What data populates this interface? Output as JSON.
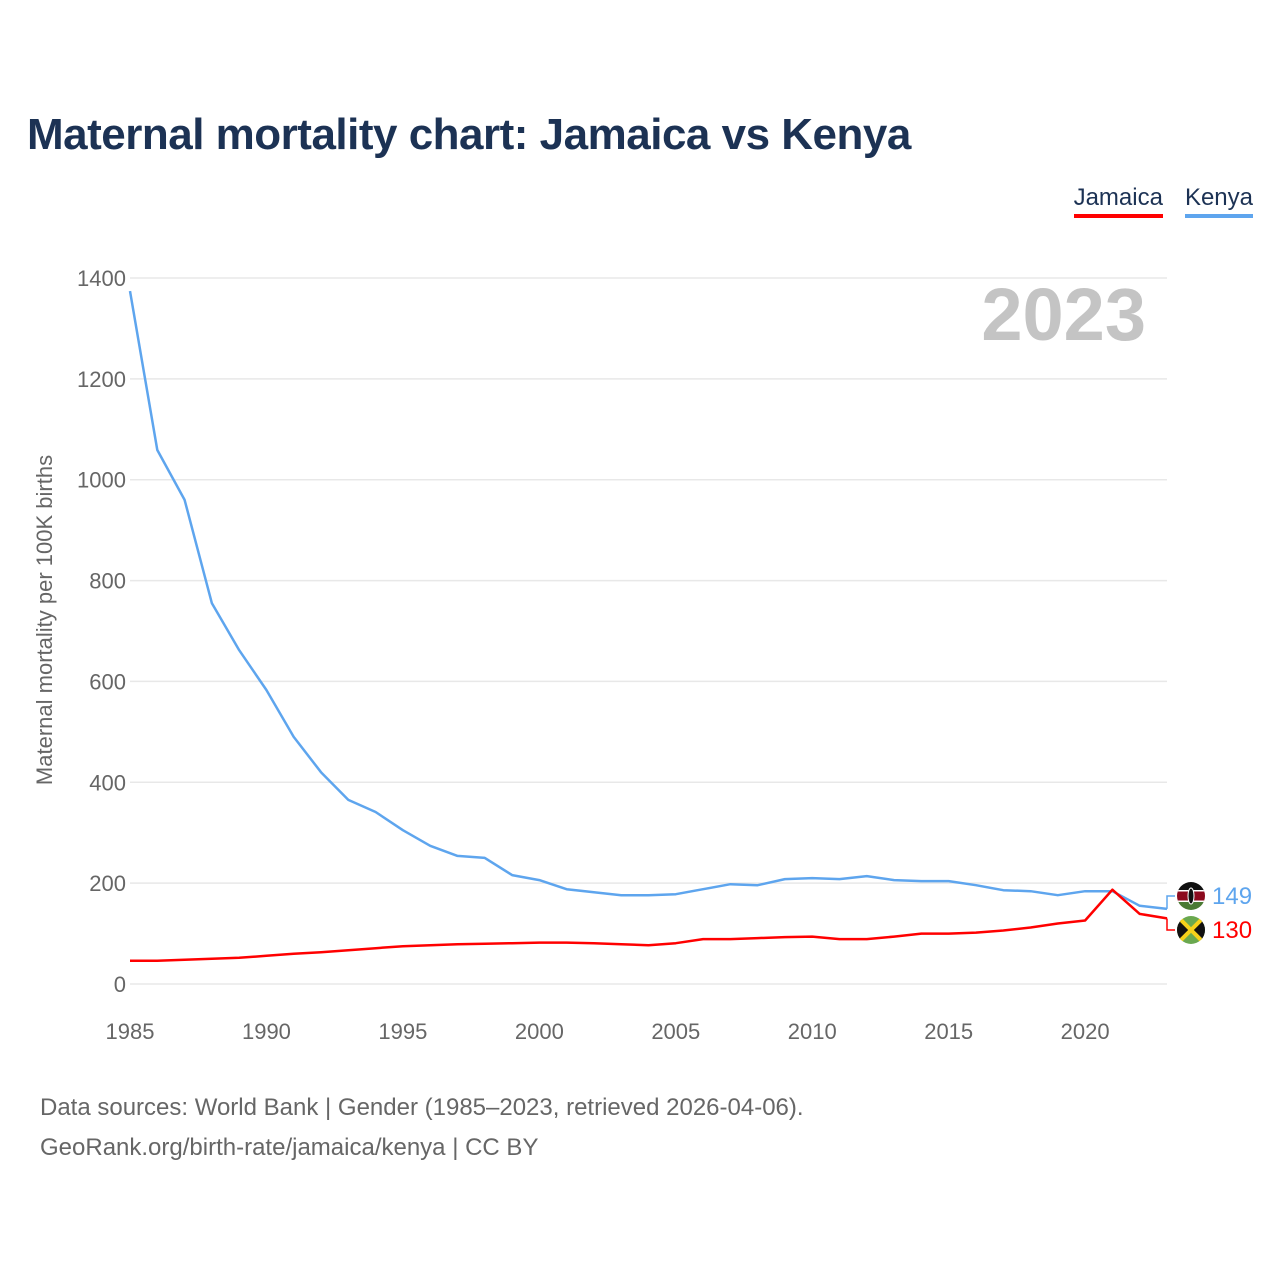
{
  "title": "Maternal mortality chart: Jamaica vs Kenya",
  "legend": [
    {
      "label": "Jamaica",
      "color": "#ff0000"
    },
    {
      "label": "Kenya",
      "color": "#5ea5ee"
    }
  ],
  "footer": {
    "line1": "Data sources: World Bank | Gender (1985–2023, retrieved 2026-04-06).",
    "line2": "GeoRank.org/birth-rate/jamaica/kenya | CC BY"
  },
  "chart_data": {
    "type": "line",
    "title": "Maternal mortality chart: Jamaica vs Kenya",
    "xlabel": "",
    "ylabel": "Maternal mortality per 100K births",
    "year_watermark": "2023",
    "xlim": [
      1985,
      2023
    ],
    "ylim": [
      0,
      1400
    ],
    "x_ticks": [
      "1985",
      "1990",
      "1995",
      "2000",
      "2005",
      "2010",
      "2015",
      "2020"
    ],
    "y_ticks": [
      "0",
      "200",
      "400",
      "600",
      "800",
      "1000",
      "1200",
      "1400"
    ],
    "grid": true,
    "legend_position": "top-right",
    "x": [
      1985,
      1986,
      1987,
      1988,
      1989,
      1990,
      1991,
      1992,
      1993,
      1994,
      1995,
      1996,
      1997,
      1998,
      1999,
      2000,
      2001,
      2002,
      2003,
      2004,
      2005,
      2006,
      2007,
      2008,
      2009,
      2010,
      2011,
      2012,
      2013,
      2014,
      2015,
      2016,
      2017,
      2018,
      2019,
      2020,
      2021,
      2022,
      2023
    ],
    "series": [
      {
        "name": "Kenya",
        "color": "#5ea5ee",
        "end_label": "149",
        "values": [
          1374,
          1059,
          960,
          755,
          662,
          583,
          490,
          420,
          365,
          341,
          305,
          274,
          254,
          250,
          216,
          206,
          188,
          182,
          176,
          176,
          178,
          188,
          198,
          196,
          208,
          210,
          208,
          214,
          206,
          204,
          204,
          196,
          186,
          184,
          176,
          184,
          184,
          155,
          149
        ]
      },
      {
        "name": "Jamaica",
        "color": "#ff0000",
        "end_label": "130",
        "values": [
          46,
          46,
          48,
          50,
          52,
          56,
          60,
          63,
          67,
          71,
          75,
          77,
          79,
          80,
          81,
          82,
          82,
          81,
          79,
          77,
          81,
          89,
          89,
          91,
          93,
          94,
          89,
          89,
          94,
          100,
          100,
          102,
          106,
          112,
          120,
          126,
          187,
          139,
          130
        ]
      }
    ]
  }
}
